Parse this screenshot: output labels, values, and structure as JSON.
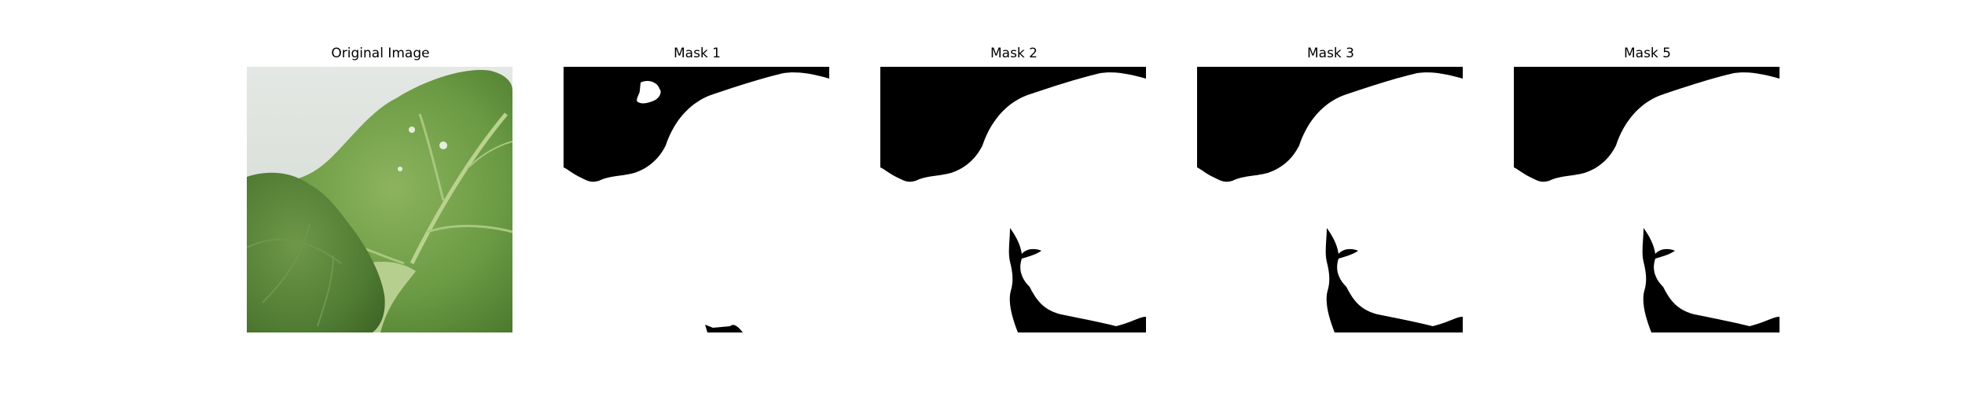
{
  "panels": [
    {
      "title": "Original Image",
      "kind": "photo"
    },
    {
      "title": "Mask 1",
      "kind": "mask"
    },
    {
      "title": "Mask 2",
      "kind": "mask"
    },
    {
      "title": "Mask 3",
      "kind": "mask"
    },
    {
      "title": "Mask 5",
      "kind": "mask"
    }
  ],
  "colors": {
    "mask_foreground": "#ffffff",
    "mask_background": "#000000",
    "photo_background": "#dfe4e0",
    "leaf_dark": "#4f7a35",
    "leaf_light": "#7ba653"
  }
}
